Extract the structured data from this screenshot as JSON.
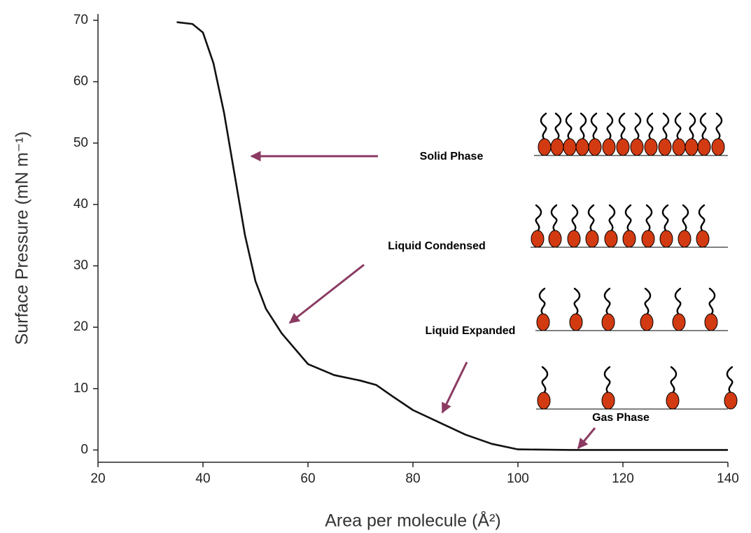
{
  "chart_data": {
    "type": "line",
    "xlabel": "Area per molecule (Å²)",
    "ylabel": "Surface Pressure (mN m⁻¹)",
    "x": [
      35,
      38,
      40,
      42,
      44,
      46,
      48,
      50,
      52,
      55,
      58,
      60,
      65,
      70,
      73,
      76,
      80,
      85,
      90,
      95,
      100,
      110,
      120,
      140
    ],
    "series": [
      {
        "color": "#111111",
        "values": [
          69.7,
          69.4,
          68,
          63,
          55,
          45,
          35,
          27.5,
          23,
          19,
          16,
          14,
          12.2,
          11.3,
          10.6,
          8.8,
          6.5,
          4.5,
          2.5,
          1,
          0.1,
          0,
          0,
          0
        ]
      }
    ],
    "xlim": [
      20,
      140
    ],
    "xticks": [
      20,
      40,
      60,
      80,
      100,
      120,
      140
    ],
    "ylim": [
      -2,
      70
    ],
    "yticks": [
      0,
      10,
      20,
      30,
      40,
      50,
      60,
      70
    ],
    "annotations": [
      {
        "text": "Solid Phase"
      },
      {
        "text": "Liquid Condensed"
      },
      {
        "text": "Liquid Expanded"
      },
      {
        "text": "Gas Phase"
      }
    ]
  }
}
